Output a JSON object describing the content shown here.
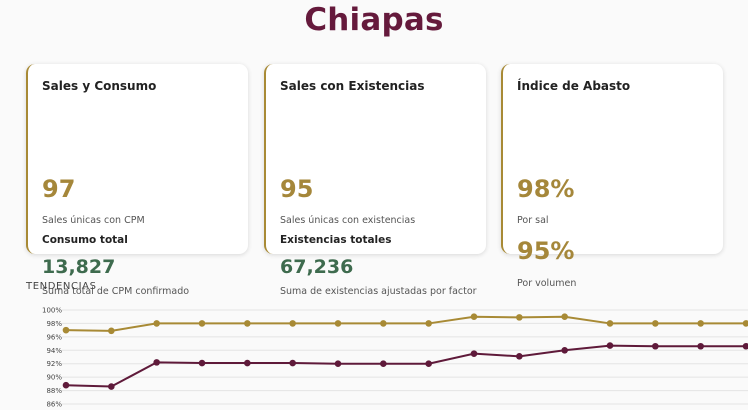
{
  "header": {
    "title": "Chiapas"
  },
  "cards": [
    {
      "title": "Sales y Consumo",
      "value": "97",
      "caption": "Sales únicas con CPM",
      "sublabel": "Consumo total",
      "subvalue": "13,827",
      "subcaption": "Suma total de CPM confirmado"
    },
    {
      "title": "Sales con Existencias",
      "value": "95",
      "caption": "Sales únicas con existencias",
      "sublabel": "Existencias totales",
      "subvalue": "67,236",
      "subcaption": "Suma de existencias ajustadas por factor"
    },
    {
      "title": "Índice de Abasto",
      "value1": "98%",
      "caption1": "Por sal",
      "value2": "95%",
      "caption2": "Por volumen"
    }
  ],
  "trends": {
    "label": "TENDENCIAS"
  },
  "colors": {
    "brand": "#651a3c",
    "gold": "#a5873a",
    "green": "#3e6b4e"
  },
  "chart_data": {
    "type": "line",
    "title": "",
    "xlabel": "",
    "ylabel": "",
    "yticks": [
      "100%",
      "98%",
      "96%",
      "94%",
      "92%",
      "90%",
      "88%",
      "86%"
    ],
    "ylim": [
      86,
      100
    ],
    "grid": true,
    "series": [
      {
        "color": "#a88a35",
        "values": [
          97.0,
          96.9,
          98.0,
          98.0,
          98.0,
          98.0,
          98.0,
          98.0,
          98.0,
          99.0,
          98.9,
          99.0,
          98.0,
          98.0,
          98.0,
          98.0
        ]
      },
      {
        "color": "#5f1a3a",
        "values": [
          88.8,
          88.6,
          92.2,
          92.1,
          92.1,
          92.1,
          92.0,
          92.0,
          92.0,
          93.5,
          93.1,
          94.0,
          94.7,
          94.6,
          94.6,
          94.6
        ]
      }
    ]
  }
}
